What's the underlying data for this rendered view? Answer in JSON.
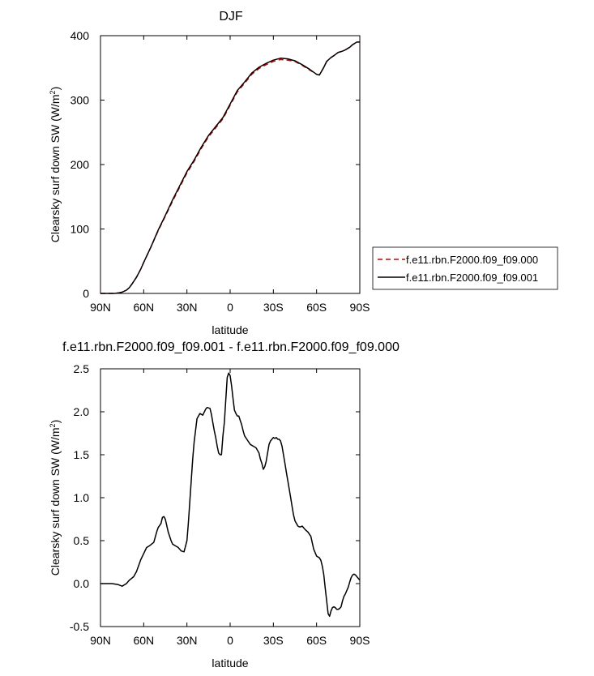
{
  "chart_data": [
    {
      "type": "line",
      "title": "DJF",
      "xlabel": "latitude",
      "ylabel": "Clearsky surf down SW (W/m",
      "ylabel_sup": "2",
      "ylabel_close": ")",
      "xlim": [
        90,
        -90
      ],
      "ylim": [
        0,
        400
      ],
      "xticks": [
        90,
        60,
        30,
        0,
        -30,
        -60,
        -90
      ],
      "xtick_labels": [
        "90N",
        "60N",
        "30N",
        "0",
        "30S",
        "60S",
        "90S"
      ],
      "yticks": [
        0,
        100,
        200,
        300,
        400
      ],
      "ytick_labels": [
        "0",
        "100",
        "200",
        "300",
        "400"
      ],
      "grid": false,
      "legend": "right",
      "series": [
        {
          "name": "f.e11.rbn.F2000.f09_f09.000",
          "color": "#cc0000",
          "dash": "dashed",
          "x": [
            90,
            85,
            80,
            77,
            75,
            72,
            70,
            68,
            65,
            62,
            60,
            55,
            50,
            45,
            40,
            35,
            30,
            25,
            20,
            15,
            10,
            5,
            0,
            -5,
            -10,
            -15,
            -20,
            -25,
            -30,
            -35,
            -40,
            -45,
            -50,
            -55,
            -60,
            -62,
            -65,
            -67,
            -70,
            -72,
            -75,
            -78,
            -80,
            -83,
            -85,
            -88,
            -90
          ],
          "y": [
            0,
            0,
            0,
            1,
            2,
            5,
            9,
            15,
            25,
            38,
            48,
            72,
            97,
            120,
            143,
            165,
            187,
            205,
            225,
            243,
            257,
            271,
            292,
            313,
            326,
            340,
            349,
            355,
            360,
            363,
            362,
            360,
            354,
            347,
            340,
            339,
            351,
            360,
            366,
            369,
            374,
            376,
            378,
            382,
            386,
            390,
            390
          ]
        },
        {
          "name": "f.e11.rbn.F2000.f09_f09.001",
          "color": "#000000",
          "dash": "solid",
          "x": [
            90,
            85,
            80,
            77,
            75,
            72,
            70,
            68,
            65,
            62,
            60,
            55,
            50,
            45,
            40,
            35,
            30,
            25,
            20,
            15,
            10,
            5,
            0,
            -5,
            -10,
            -15,
            -20,
            -25,
            -30,
            -35,
            -40,
            -45,
            -50,
            -55,
            -60,
            -62,
            -65,
            -67,
            -70,
            -72,
            -75,
            -78,
            -80,
            -83,
            -85,
            -88,
            -90
          ],
          "y": [
            0,
            0,
            0,
            1,
            2,
            5,
            9,
            15,
            25,
            38,
            48,
            72,
            98,
            121,
            145,
            167,
            189,
            207,
            227,
            245,
            259,
            273,
            294,
            315,
            328,
            342,
            351,
            357,
            362,
            365,
            364,
            361,
            355,
            348,
            340,
            339,
            351,
            360,
            366,
            369,
            374,
            376,
            378,
            382,
            386,
            390,
            390
          ]
        }
      ]
    },
    {
      "type": "line",
      "title": "f.e11.rbn.F2000.f09_f09.001 - f.e11.rbn.F2000.f09_f09.000",
      "xlabel": "latitude",
      "ylabel": "Clearsky surf down SW (W/m",
      "ylabel_sup": "2",
      "ylabel_close": ")",
      "xlim": [
        90,
        -90
      ],
      "ylim": [
        -0.5,
        2.5
      ],
      "xticks": [
        90,
        60,
        30,
        0,
        -30,
        -60,
        -90
      ],
      "xtick_labels": [
        "90N",
        "60N",
        "30N",
        "0",
        "30S",
        "60S",
        "90S"
      ],
      "yticks": [
        -0.5,
        0.0,
        0.5,
        1.0,
        1.5,
        2.0,
        2.5
      ],
      "ytick_labels": [
        "-0.5",
        "0.0",
        "0.5",
        "1.0",
        "1.5",
        "2.0",
        "2.5"
      ],
      "grid": false,
      "series": [
        {
          "color": "#000000",
          "dash": "solid",
          "x": [
            90,
            82,
            78,
            75,
            72,
            70,
            67,
            65,
            62,
            58,
            56,
            53,
            51,
            50,
            48,
            47,
            46,
            45,
            43,
            41,
            40,
            38,
            36,
            34,
            32,
            30,
            29,
            28,
            27,
            26,
            25,
            23,
            21,
            19,
            17,
            16,
            14,
            13,
            12,
            11,
            10,
            9,
            8,
            7,
            6,
            5,
            4,
            3,
            2,
            1,
            0,
            -1,
            -2,
            -3,
            -4,
            -5,
            -6,
            -7,
            -8,
            -9,
            -10,
            -12,
            -14,
            -16,
            -18,
            -20,
            -21,
            -22,
            -23,
            -24,
            -25,
            -26,
            -27,
            -28,
            -29,
            -30,
            -31,
            -32,
            -33,
            -34,
            -35,
            -36,
            -37,
            -38,
            -39,
            -40,
            -41,
            -42,
            -43,
            -44,
            -45,
            -46,
            -47,
            -48,
            -49,
            -50,
            -52,
            -54,
            -56,
            -58,
            -60,
            -62,
            -63,
            -64,
            -65,
            -66,
            -67,
            -68,
            -69,
            -70,
            -71,
            -72,
            -73,
            -74,
            -75,
            -76,
            -77,
            -78,
            -79,
            -80,
            -81,
            -82,
            -83,
            -84,
            -85,
            -86,
            -87,
            -88,
            -89,
            -90
          ],
          "y": [
            0.0,
            0.0,
            -0.01,
            -0.03,
            0.0,
            0.04,
            0.08,
            0.14,
            0.28,
            0.42,
            0.44,
            0.48,
            0.6,
            0.65,
            0.7,
            0.77,
            0.78,
            0.75,
            0.6,
            0.5,
            0.46,
            0.44,
            0.42,
            0.38,
            0.37,
            0.5,
            0.7,
            0.95,
            1.2,
            1.45,
            1.65,
            1.92,
            1.98,
            1.96,
            2.03,
            2.05,
            2.04,
            1.97,
            1.87,
            1.78,
            1.7,
            1.6,
            1.52,
            1.5,
            1.5,
            1.72,
            1.88,
            2.15,
            2.4,
            2.45,
            2.42,
            2.3,
            2.15,
            2.02,
            1.98,
            1.95,
            1.95,
            1.9,
            1.85,
            1.78,
            1.72,
            1.67,
            1.62,
            1.6,
            1.58,
            1.52,
            1.45,
            1.4,
            1.33,
            1.36,
            1.42,
            1.52,
            1.62,
            1.66,
            1.68,
            1.7,
            1.69,
            1.7,
            1.68,
            1.68,
            1.66,
            1.6,
            1.5,
            1.4,
            1.3,
            1.2,
            1.1,
            1.0,
            0.9,
            0.8,
            0.73,
            0.7,
            0.67,
            0.66,
            0.66,
            0.67,
            0.63,
            0.6,
            0.55,
            0.4,
            0.32,
            0.3,
            0.27,
            0.2,
            0.1,
            -0.05,
            -0.2,
            -0.35,
            -0.38,
            -0.32,
            -0.28,
            -0.27,
            -0.28,
            -0.3,
            -0.3,
            -0.29,
            -0.27,
            -0.2,
            -0.15,
            -0.12,
            -0.08,
            -0.04,
            0.02,
            0.07,
            0.1,
            0.11,
            0.1,
            0.08,
            0.06,
            0.04
          ]
        }
      ]
    }
  ]
}
